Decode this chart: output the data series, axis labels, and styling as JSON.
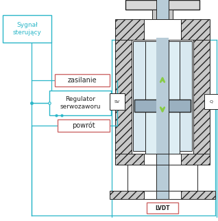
{
  "bg_color": "#ffffff",
  "cyan": "#29b6c8",
  "dark": "#222222",
  "red_border": "#cc6666",
  "green_arrow": "#88cc44",
  "gray_fill": "#d8d8d8",
  "hatch_fill": "#c8c8c8",
  "rod_fill": "#b8ccd8",
  "chamber_fill": "#deeef4",
  "inner_fill": "#e8f4f8",
  "lvdt_label": "LVDT",
  "zasilanie_label": "zasilanie",
  "powrot_label": "powrót",
  "regulator_label": "Regulator\nserwozaworu",
  "sygnal_label": "Sygnał\nsterujący",
  "sv_label": "SV",
  "q_label": "Q"
}
